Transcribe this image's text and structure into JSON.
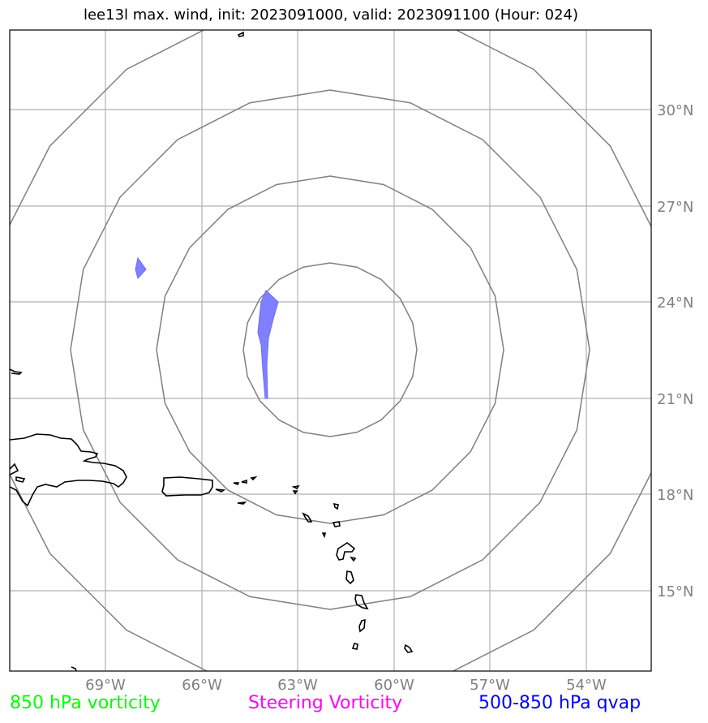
{
  "title": "lee13l max. wind, init: 2023091000, valid: 2023091100 (Hour: 024)",
  "map": {
    "lon_ticks": [
      "69°W",
      "66°W",
      "63°W",
      "60°W",
      "57°W",
      "54°W"
    ],
    "lat_ticks": [
      "30°N",
      "27°N",
      "24°N",
      "21°N",
      "18°N",
      "15°N"
    ],
    "lon_range": [
      -72,
      -52
    ],
    "lat_range": [
      12.5,
      32.5
    ],
    "range_rings_color": "#808080",
    "gridline_color": "#b0b0b0",
    "coastline_color": "#000000",
    "feature_fill_color": "#8080ff"
  },
  "legend": [
    {
      "label": "850 hPa vorticity",
      "color": "#00ff00"
    },
    {
      "label": "Steering Vorticity",
      "color": "#ff00ff"
    },
    {
      "label": "500-850 hPa qvap",
      "color": "#0000ff"
    }
  ]
}
